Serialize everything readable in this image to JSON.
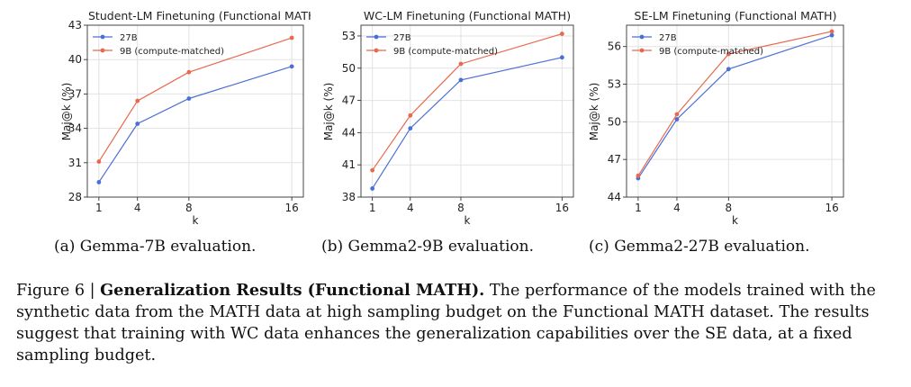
{
  "chart_data": [
    {
      "type": "line",
      "title": "Student-LM Finetuning (Functional MATH)",
      "xlabel": "k",
      "ylabel": "Maj@k (%)",
      "x": [
        1,
        4,
        8,
        16
      ],
      "xticks": [
        "1",
        "4",
        "8",
        "16"
      ],
      "yticks": [
        "28",
        "31",
        "34",
        "37",
        "40",
        "43"
      ],
      "ylim": [
        28,
        43
      ],
      "grid": true,
      "legend": "top-left",
      "series": [
        {
          "name": "27B",
          "color": "#4c6fd6",
          "values": [
            29.3,
            34.4,
            36.6,
            39.4
          ]
        },
        {
          "name": "9B (compute-matched)",
          "color": "#e8694f",
          "values": [
            31.1,
            36.4,
            38.9,
            41.9
          ]
        }
      ],
      "caption": "(a) Gemma-7B evaluation."
    },
    {
      "type": "line",
      "title": "WC-LM Finetuning (Functional MATH)",
      "xlabel": "k",
      "ylabel": "Maj@k (%)",
      "x": [
        1,
        4,
        8,
        16
      ],
      "xticks": [
        "1",
        "4",
        "8",
        "16"
      ],
      "yticks": [
        "38",
        "41",
        "44",
        "47",
        "50",
        "53"
      ],
      "ylim": [
        38,
        54
      ],
      "grid": true,
      "legend": "top-left",
      "series": [
        {
          "name": "27B",
          "color": "#4c6fd6",
          "values": [
            38.8,
            44.4,
            48.9,
            51.0
          ]
        },
        {
          "name": "9B (compute-matched)",
          "color": "#e8694f",
          "values": [
            40.5,
            45.6,
            50.4,
            53.2
          ]
        }
      ],
      "caption": "(b) Gemma2-9B evaluation."
    },
    {
      "type": "line",
      "title": "SE-LM Finetuning (Functional MATH)",
      "xlabel": "k",
      "ylabel": "Maj@k (%)",
      "x": [
        1,
        4,
        8,
        16
      ],
      "xticks": [
        "1",
        "4",
        "8",
        "16"
      ],
      "yticks": [
        "44",
        "47",
        "50",
        "53",
        "56"
      ],
      "ylim": [
        44,
        57.7
      ],
      "grid": true,
      "legend": "top-left",
      "series": [
        {
          "name": "27B",
          "color": "#4c6fd6",
          "values": [
            45.5,
            50.2,
            54.2,
            56.9
          ]
        },
        {
          "name": "9B (compute-matched)",
          "color": "#e8694f",
          "values": [
            45.7,
            50.6,
            55.4,
            57.2
          ]
        }
      ],
      "caption": "(c) Gemma2-27B evaluation."
    }
  ],
  "figure_caption": {
    "label": "Figure 6 |",
    "bold": "Generalization Results (Functional MATH).",
    "text": "The performance of the models trained with the synthetic data from the MATH data at high sampling budget on the Functional MATH dataset. The results suggest that training with WC data enhances the generalization capabilities over the SE data, at a fixed sampling budget."
  }
}
